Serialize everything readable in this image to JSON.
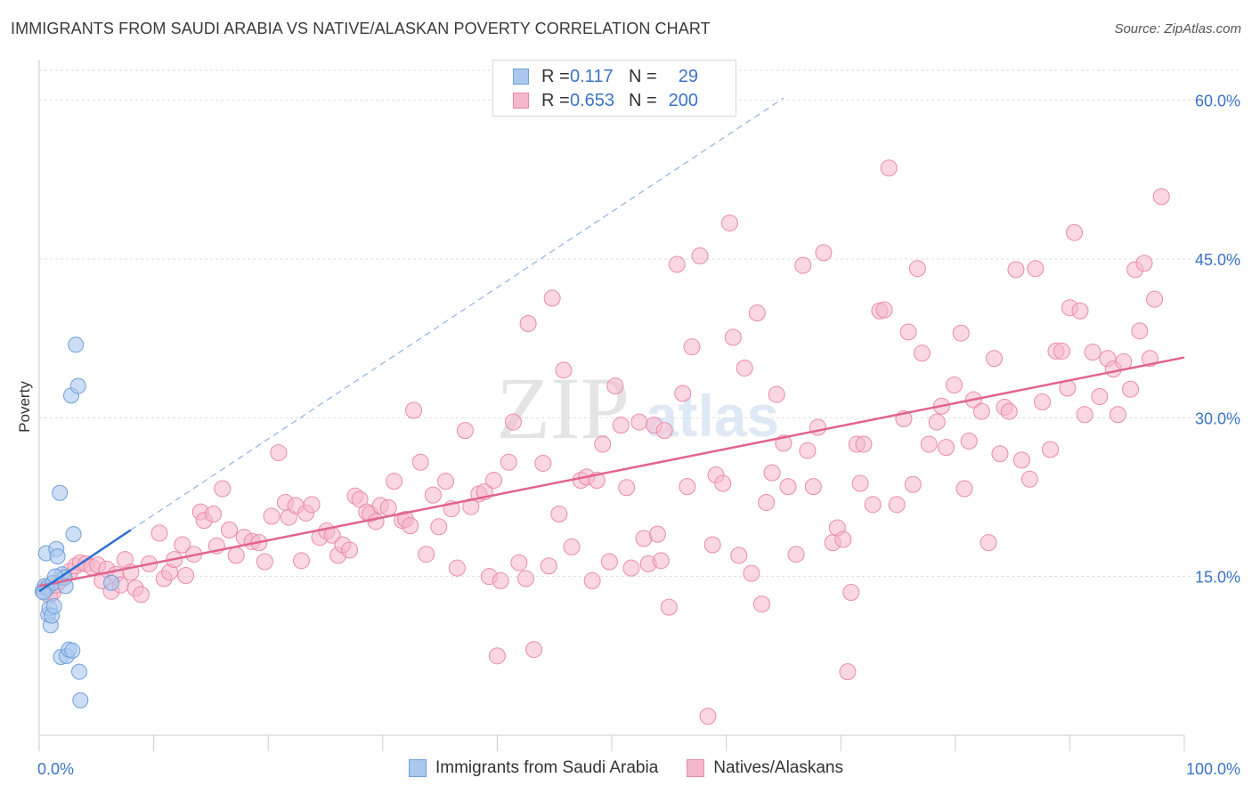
{
  "title": "IMMIGRANTS FROM SAUDI ARABIA VS NATIVE/ALASKAN POVERTY CORRELATION CHART",
  "source": "Source: ZipAtlas.com",
  "watermark": {
    "zip": "ZIP",
    "atlas": "atlas"
  },
  "legend": {
    "rows": [
      {
        "r_label": "R =",
        "r_value": "0.117",
        "n_label": "N =",
        "n_value": "29"
      },
      {
        "r_label": "R =",
        "r_value": "0.653",
        "n_label": "N =",
        "n_value": "200"
      }
    ]
  },
  "colors": {
    "blue_fill": "#aac8ef",
    "blue_stroke": "#6f9fd8",
    "blue_line": "#2f6fd0",
    "pink_fill": "#f5b7cb",
    "pink_stroke": "#e98bab",
    "pink_line": "#e0648f",
    "axis_text": "#3b74c5",
    "grid": "#dddddd"
  },
  "chart_data": {
    "type": "scatter",
    "title": "IMMIGRANTS FROM SAUDI ARABIA VS NATIVE/ALASKAN POVERTY CORRELATION CHART",
    "xlabel": "",
    "ylabel": "Poverty",
    "xlim": [
      0,
      100
    ],
    "ylim": [
      0,
      63
    ],
    "x_tick_labels": [
      "0.0%",
      "100.0%"
    ],
    "y_ticks": [
      15,
      30,
      45,
      60
    ],
    "y_tick_labels": [
      "15.0%",
      "30.0%",
      "45.0%",
      "60.0%"
    ],
    "series": [
      {
        "name": "Immigrants from Saudi Arabia",
        "color": "blue",
        "points": [
          [
            0.3,
            13.6
          ],
          [
            0.5,
            14.1
          ],
          [
            0.6,
            17.2
          ],
          [
            0.7,
            13.9
          ],
          [
            0.8,
            11.4
          ],
          [
            0.9,
            12.0
          ],
          [
            1.0,
            10.4
          ],
          [
            1.1,
            11.3
          ],
          [
            1.2,
            14.4
          ],
          [
            1.3,
            12.2
          ],
          [
            1.5,
            17.6
          ],
          [
            1.6,
            16.9
          ],
          [
            1.8,
            22.9
          ],
          [
            2.0,
            15.2
          ],
          [
            2.2,
            14.9
          ],
          [
            2.3,
            14.1
          ],
          [
            1.9,
            7.4
          ],
          [
            2.4,
            7.5
          ],
          [
            2.6,
            8.1
          ],
          [
            2.8,
            32.1
          ],
          [
            2.9,
            8.0
          ],
          [
            3.0,
            19.0
          ],
          [
            3.2,
            36.9
          ],
          [
            3.4,
            33.0
          ],
          [
            3.5,
            6.0
          ],
          [
            3.6,
            3.3
          ],
          [
            0.4,
            13.5
          ],
          [
            1.4,
            15.0
          ],
          [
            6.3,
            14.4
          ]
        ],
        "trend": {
          "x0": 0,
          "y0": 13.6,
          "x1": 8.0,
          "y1": 19.4
        },
        "trend_ext": {
          "x0": 8.0,
          "y0": 19.4,
          "x1": 65.0,
          "y1": 60.2
        }
      },
      {
        "name": "Natives/Alaskans",
        "color": "pink",
        "points": [
          [
            0.5,
            14.0
          ],
          [
            0.9,
            13.2
          ],
          [
            1.2,
            13.5
          ],
          [
            1.5,
            14.2
          ],
          [
            1.8,
            14.6
          ],
          [
            2.2,
            14.9
          ],
          [
            2.7,
            15.5
          ],
          [
            3.2,
            16.0
          ],
          [
            3.6,
            16.3
          ],
          [
            4.1,
            16.2
          ],
          [
            4.6,
            15.9
          ],
          [
            5.1,
            16.1
          ],
          [
            5.5,
            14.6
          ],
          [
            5.9,
            15.7
          ],
          [
            6.3,
            13.6
          ],
          [
            6.7,
            15.2
          ],
          [
            7.1,
            14.2
          ],
          [
            7.5,
            16.6
          ],
          [
            8.0,
            15.4
          ],
          [
            8.4,
            13.9
          ],
          [
            8.9,
            13.3
          ],
          [
            9.6,
            16.2
          ],
          [
            10.5,
            19.1
          ],
          [
            10.9,
            14.8
          ],
          [
            11.4,
            15.4
          ],
          [
            11.8,
            16.6
          ],
          [
            12.5,
            18.0
          ],
          [
            12.8,
            15.1
          ],
          [
            13.5,
            17.1
          ],
          [
            14.1,
            21.1
          ],
          [
            14.4,
            20.3
          ],
          [
            15.2,
            20.9
          ],
          [
            15.5,
            17.9
          ],
          [
            16.0,
            23.3
          ],
          [
            16.6,
            19.4
          ],
          [
            17.2,
            17.0
          ],
          [
            17.9,
            18.7
          ],
          [
            18.6,
            18.3
          ],
          [
            19.2,
            18.2
          ],
          [
            19.7,
            16.4
          ],
          [
            20.3,
            20.7
          ],
          [
            20.9,
            26.7
          ],
          [
            21.5,
            22.0
          ],
          [
            21.8,
            20.6
          ],
          [
            22.4,
            21.7
          ],
          [
            22.9,
            16.5
          ],
          [
            23.3,
            21.0
          ],
          [
            23.8,
            21.8
          ],
          [
            24.5,
            18.7
          ],
          [
            25.1,
            19.3
          ],
          [
            25.6,
            18.9
          ],
          [
            26.1,
            17.0
          ],
          [
            26.5,
            18.0
          ],
          [
            27.1,
            17.5
          ],
          [
            27.6,
            22.6
          ],
          [
            28.0,
            22.3
          ],
          [
            28.6,
            21.1
          ],
          [
            28.9,
            20.9
          ],
          [
            29.4,
            20.2
          ],
          [
            29.8,
            21.7
          ],
          [
            30.5,
            21.5
          ],
          [
            31.0,
            24.0
          ],
          [
            31.7,
            20.3
          ],
          [
            32.0,
            20.4
          ],
          [
            32.4,
            19.8
          ],
          [
            32.7,
            30.7
          ],
          [
            33.3,
            25.8
          ],
          [
            33.8,
            17.1
          ],
          [
            34.4,
            22.7
          ],
          [
            34.9,
            19.7
          ],
          [
            35.5,
            24.0
          ],
          [
            36.0,
            21.4
          ],
          [
            36.5,
            15.8
          ],
          [
            37.2,
            28.8
          ],
          [
            37.7,
            21.6
          ],
          [
            38.4,
            22.8
          ],
          [
            38.9,
            23.0
          ],
          [
            39.3,
            15.0
          ],
          [
            39.7,
            24.1
          ],
          [
            40.0,
            7.5
          ],
          [
            40.3,
            14.6
          ],
          [
            41.0,
            25.8
          ],
          [
            41.4,
            29.6
          ],
          [
            41.9,
            16.3
          ],
          [
            42.5,
            14.8
          ],
          [
            42.7,
            38.9
          ],
          [
            43.2,
            8.1
          ],
          [
            44.0,
            25.7
          ],
          [
            44.5,
            16.0
          ],
          [
            44.8,
            41.3
          ],
          [
            45.4,
            20.9
          ],
          [
            45.8,
            34.5
          ],
          [
            46.5,
            17.8
          ],
          [
            47.3,
            24.1
          ],
          [
            47.8,
            24.4
          ],
          [
            48.3,
            14.6
          ],
          [
            48.7,
            24.1
          ],
          [
            49.2,
            27.5
          ],
          [
            49.8,
            16.4
          ],
          [
            50.3,
            33.0
          ],
          [
            50.8,
            29.3
          ],
          [
            51.3,
            23.4
          ],
          [
            51.7,
            15.8
          ],
          [
            52.4,
            29.6
          ],
          [
            52.8,
            18.6
          ],
          [
            53.2,
            16.2
          ],
          [
            53.7,
            29.3
          ],
          [
            54.0,
            19.0
          ],
          [
            54.3,
            16.5
          ],
          [
            54.6,
            28.8
          ],
          [
            55.0,
            12.1
          ],
          [
            55.7,
            44.5
          ],
          [
            56.2,
            32.3
          ],
          [
            56.6,
            23.5
          ],
          [
            57.0,
            36.7
          ],
          [
            57.7,
            45.3
          ],
          [
            58.4,
            1.8
          ],
          [
            58.8,
            18.0
          ],
          [
            59.1,
            24.6
          ],
          [
            59.7,
            23.8
          ],
          [
            60.3,
            48.4
          ],
          [
            60.6,
            37.6
          ],
          [
            61.1,
            17.0
          ],
          [
            61.6,
            34.7
          ],
          [
            62.2,
            15.3
          ],
          [
            62.7,
            39.9
          ],
          [
            63.1,
            12.4
          ],
          [
            63.5,
            22.0
          ],
          [
            64.0,
            24.8
          ],
          [
            64.4,
            32.2
          ],
          [
            65.0,
            27.6
          ],
          [
            65.4,
            23.5
          ],
          [
            66.1,
            17.1
          ],
          [
            66.7,
            44.4
          ],
          [
            67.1,
            26.9
          ],
          [
            67.6,
            23.5
          ],
          [
            68.0,
            29.1
          ],
          [
            68.5,
            45.6
          ],
          [
            69.3,
            18.2
          ],
          [
            69.7,
            19.6
          ],
          [
            70.2,
            18.5
          ],
          [
            70.6,
            6.0
          ],
          [
            70.9,
            13.5
          ],
          [
            71.4,
            27.5
          ],
          [
            71.7,
            23.8
          ],
          [
            72.0,
            27.5
          ],
          [
            72.8,
            21.8
          ],
          [
            73.4,
            40.1
          ],
          [
            73.8,
            40.2
          ],
          [
            74.2,
            53.6
          ],
          [
            74.9,
            21.8
          ],
          [
            75.5,
            29.9
          ],
          [
            75.9,
            38.1
          ],
          [
            76.3,
            23.7
          ],
          [
            76.7,
            44.1
          ],
          [
            77.1,
            36.1
          ],
          [
            77.7,
            27.5
          ],
          [
            78.4,
            29.6
          ],
          [
            78.8,
            31.1
          ],
          [
            79.2,
            27.2
          ],
          [
            79.9,
            33.1
          ],
          [
            80.5,
            38.0
          ],
          [
            80.8,
            23.3
          ],
          [
            81.2,
            27.8
          ],
          [
            81.6,
            31.7
          ],
          [
            82.3,
            30.6
          ],
          [
            82.9,
            18.2
          ],
          [
            83.4,
            35.6
          ],
          [
            83.9,
            26.6
          ],
          [
            84.3,
            31.0
          ],
          [
            84.7,
            30.6
          ],
          [
            85.3,
            44.0
          ],
          [
            85.8,
            26.0
          ],
          [
            86.5,
            24.2
          ],
          [
            87.0,
            44.1
          ],
          [
            87.6,
            31.5
          ],
          [
            88.3,
            27.0
          ],
          [
            88.8,
            36.3
          ],
          [
            89.3,
            36.3
          ],
          [
            89.8,
            32.8
          ],
          [
            90.0,
            40.4
          ],
          [
            90.4,
            47.5
          ],
          [
            90.9,
            40.1
          ],
          [
            91.3,
            30.3
          ],
          [
            92.0,
            36.2
          ],
          [
            92.6,
            32.0
          ],
          [
            93.3,
            35.6
          ],
          [
            93.8,
            34.6
          ],
          [
            94.2,
            30.3
          ],
          [
            94.7,
            35.3
          ],
          [
            95.3,
            32.7
          ],
          [
            95.7,
            44.0
          ],
          [
            96.1,
            38.2
          ],
          [
            96.5,
            44.6
          ],
          [
            97.0,
            35.6
          ],
          [
            97.4,
            41.2
          ],
          [
            98.0,
            50.9
          ]
        ],
        "trend": {
          "x0": 0,
          "y0": 14.1,
          "x1": 100,
          "y1": 35.7
        }
      }
    ]
  }
}
